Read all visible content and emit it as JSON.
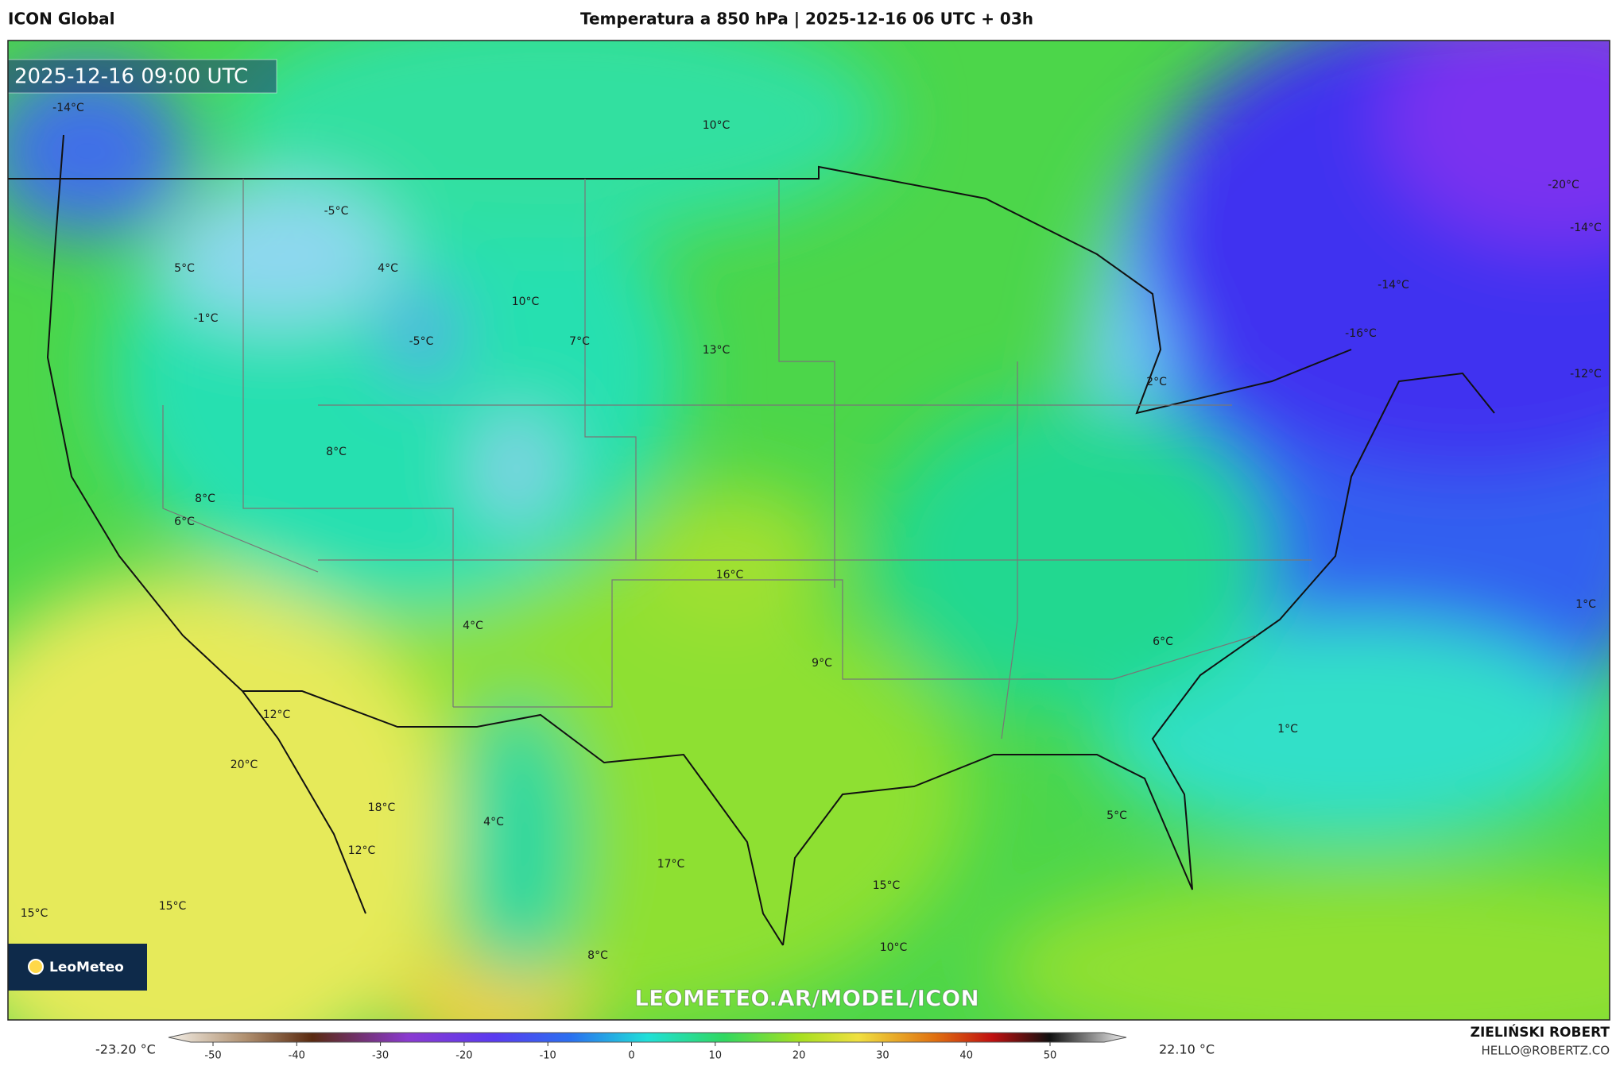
{
  "header": {
    "model": "ICON Global",
    "title": "Temperatura a 850 hPa | 2025-12-16 06 UTC + 03h"
  },
  "map": {
    "timestamp": "2025-12-16 09:00 UTC",
    "labels": [
      "-14°C",
      "10°C",
      "-20°C",
      "-14°C",
      "-5°C",
      "5°C",
      "4°C",
      "10°C",
      "-14°C",
      "-1°C",
      "-5°C",
      "7°C",
      "13°C",
      "-16°C",
      "-12°C",
      "2°C",
      "8°C",
      "8°C",
      "6°C",
      "16°C",
      "1°C",
      "4°C",
      "6°C",
      "9°C",
      "12°C",
      "1°C",
      "20°C",
      "18°C",
      "4°C",
      "5°C",
      "12°C",
      "17°C",
      "15°C",
      "15°C",
      "15°C",
      "10°C",
      "8°C"
    ],
    "watermark": "LEOMETEO.AR/MODEL/ICON",
    "logo": "LeoMeteo"
  },
  "legend": {
    "min": "-23.20 °C",
    "max": "22.10 °C",
    "ticks": [
      -50,
      -40,
      -30,
      -20,
      -10,
      0,
      10,
      20,
      30,
      40,
      50
    ]
  },
  "footer": {
    "author": "ZIELIŃSKI ROBERT",
    "email": "HELLO@ROBERTZ.CO"
  }
}
